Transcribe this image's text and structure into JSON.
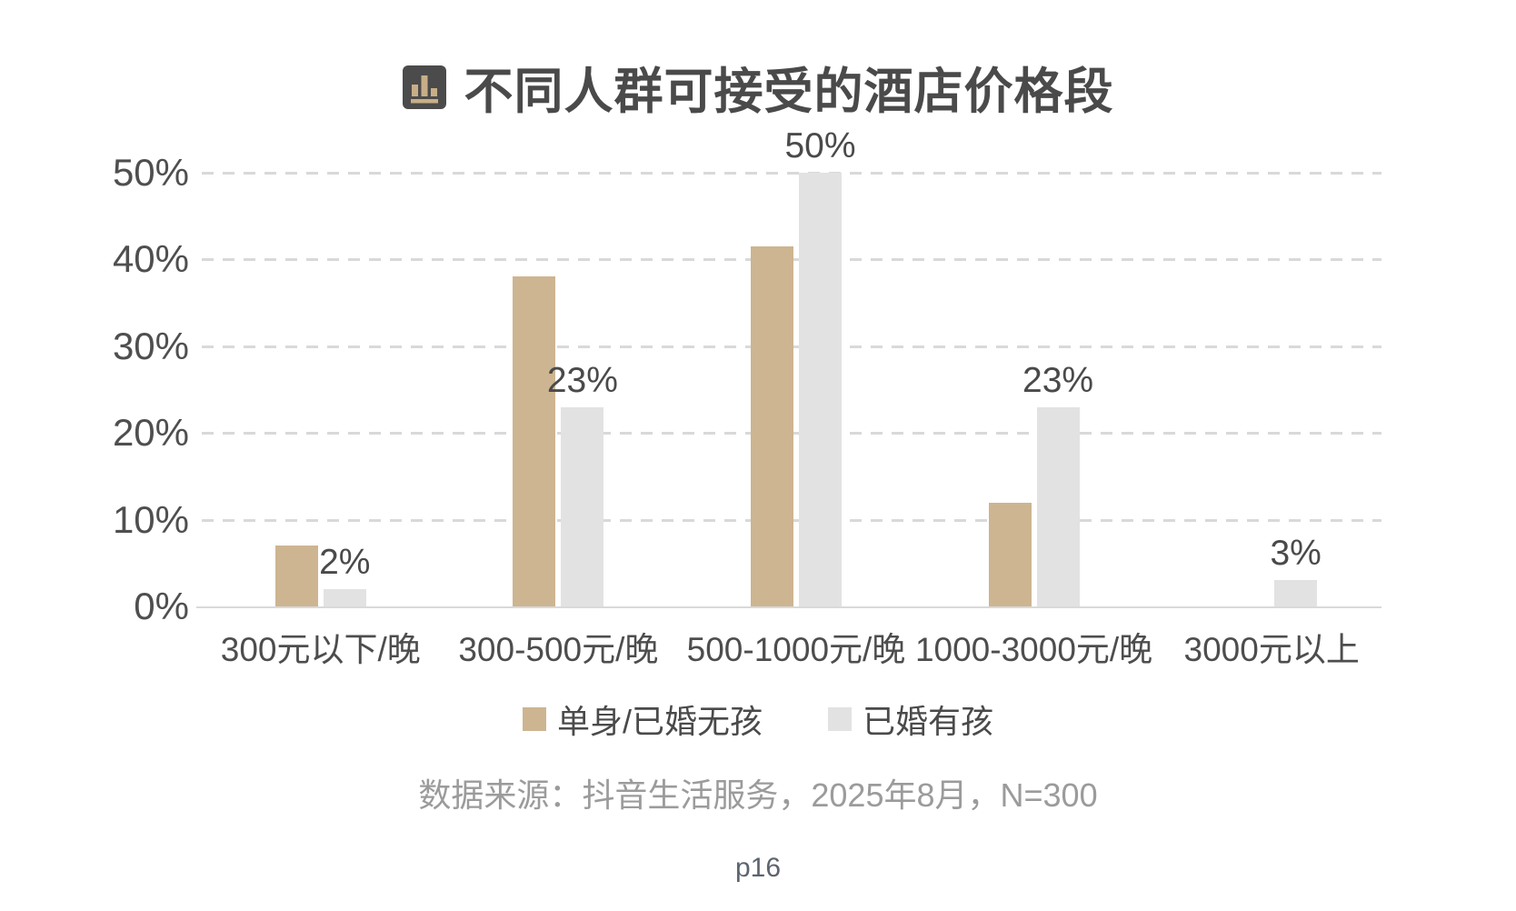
{
  "chart": {
    "title": "不同人群可接受的酒店价格段",
    "title_icon": "bar-chart-icon",
    "source": "数据来源：抖音生活服务，2025年8月，N=300"
  },
  "chart_data": {
    "type": "bar",
    "title": "不同人群可接受的酒店价格段",
    "categories": [
      "300元以下/晚",
      "300-500元/晚",
      "500-1000元/晚",
      "1000-3000元/晚",
      "3000元以上"
    ],
    "series": [
      {
        "name": "单身/已婚无孩",
        "color": "#cdb591",
        "values": [
          7,
          38,
          41.5,
          12,
          0
        ],
        "data_labels": [
          "",
          "",
          "",
          "",
          ""
        ]
      },
      {
        "name": "已婚有孩",
        "color": "#e2e2e2",
        "values": [
          2,
          23,
          50,
          23,
          3
        ],
        "data_labels": [
          "2%",
          "23%",
          "50%",
          "23%",
          "3%"
        ]
      }
    ],
    "y_axis": {
      "min": 0,
      "max": 50,
      "tick_step": 10,
      "tick_labels": [
        "0%",
        "10%",
        "20%",
        "30%",
        "40%",
        "50%"
      ],
      "gridlines": "dashed horizontal, light gray"
    },
    "legend_position": "bottom",
    "source": "数据来源：抖音生活服务，2025年8月，N=300",
    "colors": {
      "series1": "#cdb591",
      "series2": "#e2e2e2",
      "gridline": "#d9d9d9",
      "axis_text": "#4f4f4f",
      "title_text": "#4a4a4b",
      "source_text": "#9b9b9b",
      "icon_bg": "#4b4b4b",
      "icon_bars": "#c8ae87"
    }
  },
  "footer": {
    "page": "p16"
  }
}
